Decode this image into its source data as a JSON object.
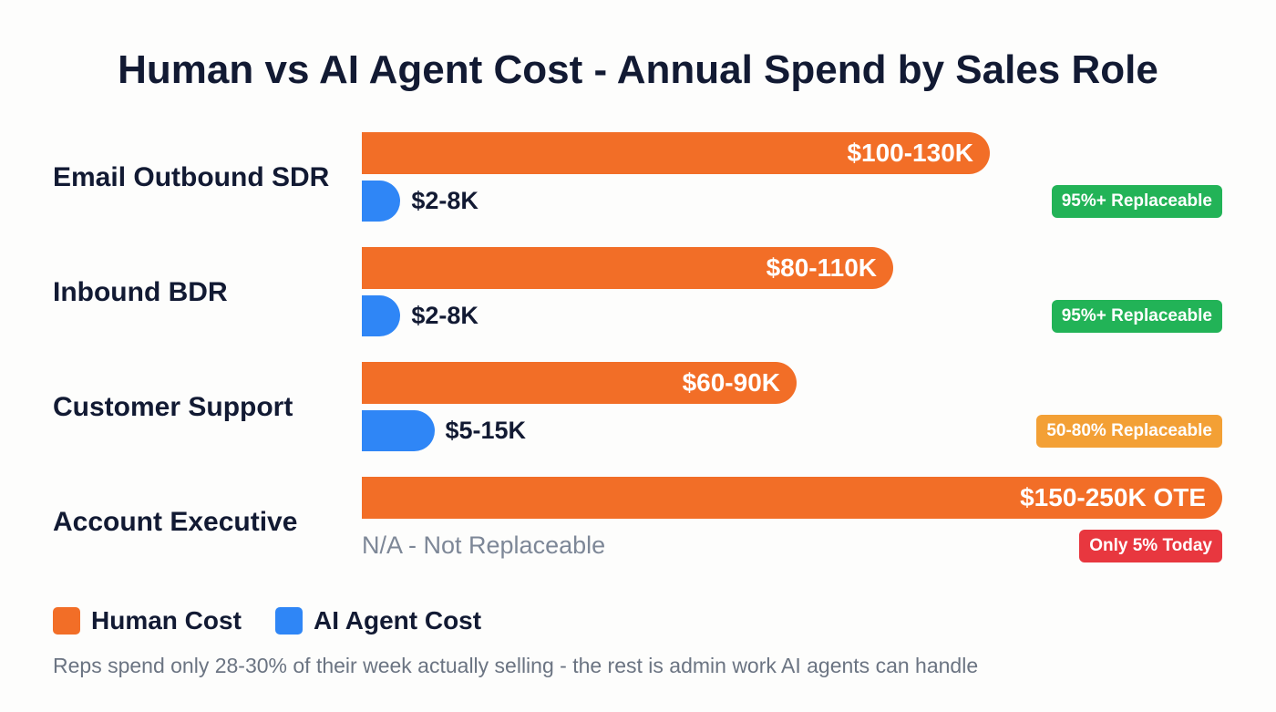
{
  "chart_data": {
    "type": "bar",
    "orientation": "horizontal",
    "title": "Human vs AI Agent Cost - Annual Spend by Sales Role",
    "unit": "thousand USD per year",
    "categories": [
      "Email Outbound SDR",
      "Inbound BDR",
      "Customer Support",
      "Account Executive"
    ],
    "series": [
      {
        "name": "Human Cost",
        "color": "#f26e27",
        "ranges": [
          [
            100,
            130
          ],
          [
            80,
            110
          ],
          [
            60,
            90
          ],
          [
            150,
            250
          ]
        ],
        "labels": [
          "$100-130K",
          "$80-110K",
          "$60-90K",
          "$150-250K OTE"
        ]
      },
      {
        "name": "AI Agent Cost",
        "color": "#2f86f6",
        "ranges": [
          [
            2,
            8
          ],
          [
            2,
            8
          ],
          [
            5,
            15
          ],
          null
        ],
        "labels": [
          "$2-8K",
          "$2-8K",
          "$5-15K",
          "N/A - Not Replaceable"
        ]
      }
    ],
    "badges": [
      {
        "text": "95%+ Replaceable",
        "color": "#22b357"
      },
      {
        "text": "95%+ Replaceable",
        "color": "#22b357"
      },
      {
        "text": "50-80% Replaceable",
        "color": "#f3a035"
      },
      {
        "text": "Only 5% Today",
        "color": "#e8373f"
      }
    ],
    "legend": {
      "placement": "bottom-left",
      "items": [
        "Human Cost",
        "AI Agent Cost"
      ]
    },
    "grid": false,
    "footnote": "Reps spend only 28-30% of their week actually selling - the rest is admin work AI agents can handle"
  }
}
